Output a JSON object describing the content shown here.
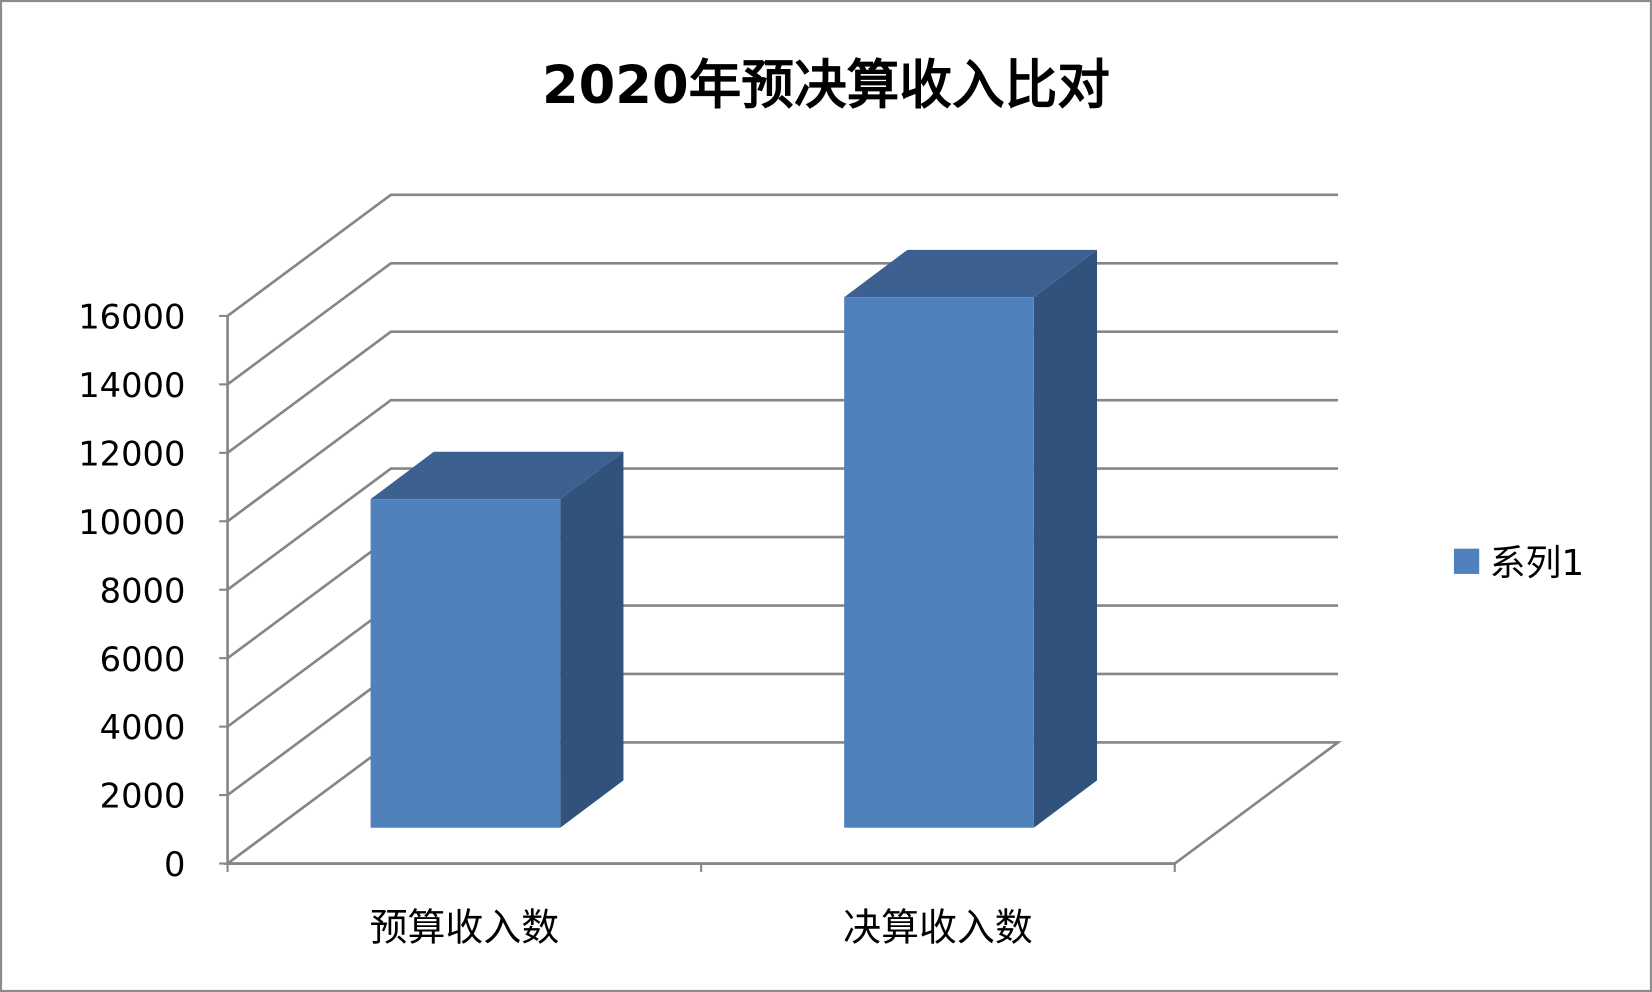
{
  "chart_data": {
    "type": "bar",
    "style": "3d-column",
    "title": "2020年预决算收入比对",
    "categories": [
      "预算收入数",
      "决算收入数"
    ],
    "series": [
      {
        "name": "系列1",
        "values": [
          9600,
          15500
        ],
        "color": "#4F81BD"
      }
    ],
    "ylim": [
      0,
      16000
    ],
    "yticks": [
      "0",
      "2000",
      "4000",
      "6000",
      "8000",
      "10000",
      "12000",
      "14000",
      "16000"
    ],
    "grid": true,
    "legend": "right",
    "colors": {
      "front": "#4F81BD",
      "side": "#31527A",
      "top": "#3C6190",
      "grid": "#868686",
      "border": "#8C8C8C"
    }
  }
}
